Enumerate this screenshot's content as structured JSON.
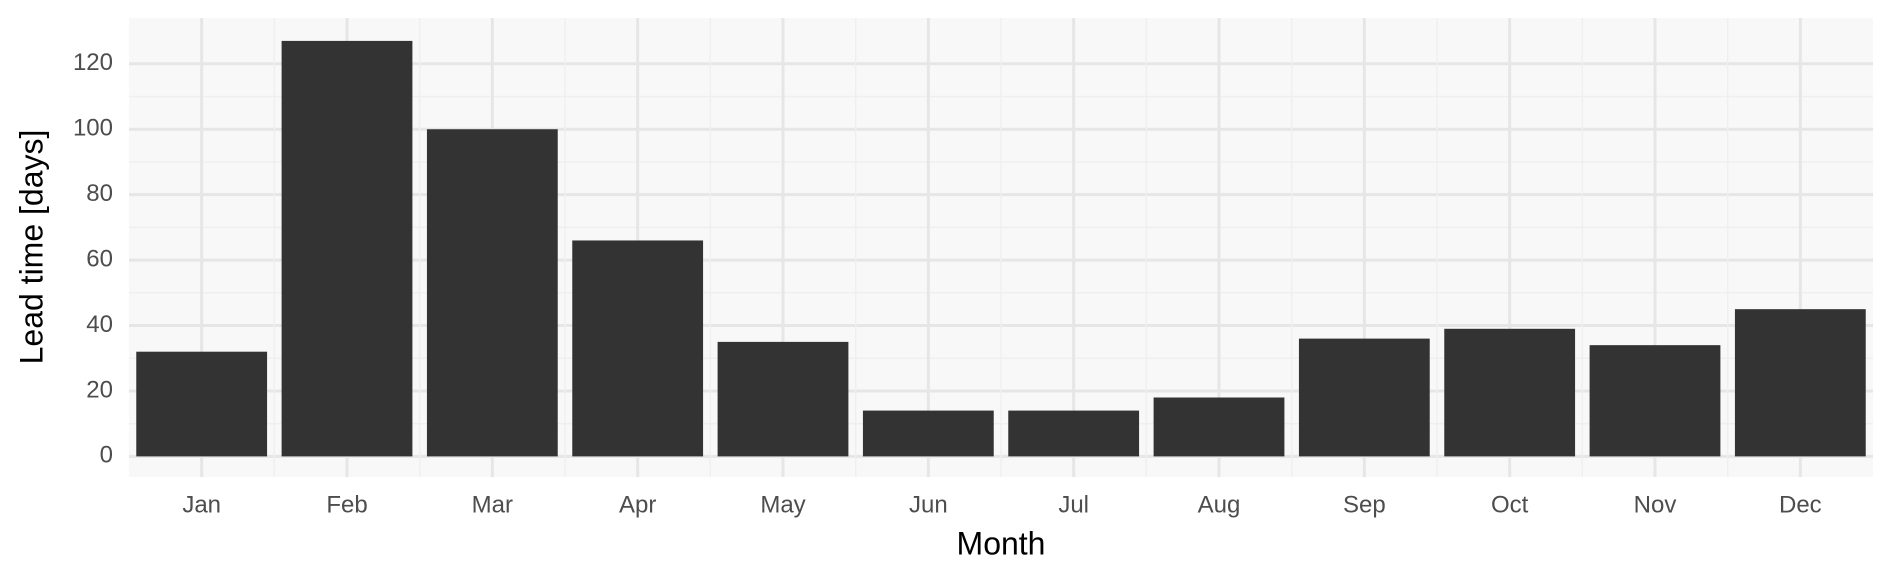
{
  "chart_data": {
    "type": "bar",
    "x_label": "Month",
    "y_label": "Lead time [days]",
    "categories": [
      "Jan",
      "Feb",
      "Mar",
      "Apr",
      "May",
      "Jun",
      "Jul",
      "Aug",
      "Sep",
      "Oct",
      "Nov",
      "Dec"
    ],
    "values": [
      32,
      127,
      100,
      66,
      35,
      14,
      14,
      18,
      36,
      39,
      34,
      45
    ],
    "color": "#333333",
    "ylim": [
      -6.3,
      134
    ],
    "yticks": [
      0,
      20,
      40,
      60,
      80,
      100,
      120
    ],
    "grid": true,
    "minor_grid": true
  }
}
